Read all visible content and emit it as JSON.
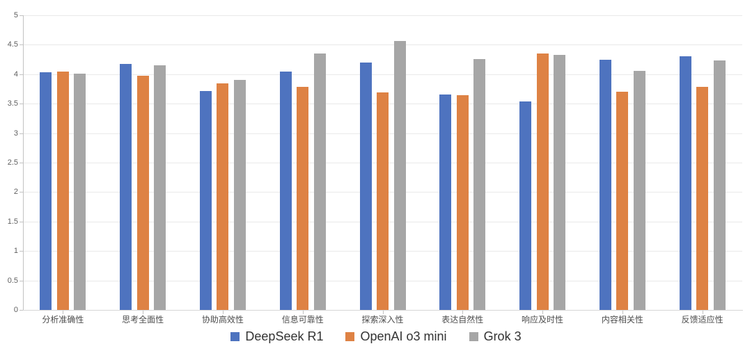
{
  "chart_data": {
    "type": "bar",
    "title": "",
    "categories": [
      "分析准确性",
      "思考全面性",
      "协助高效性",
      "信息可靠性",
      "探索深入性",
      "表达自然性",
      "响应及时性",
      "内容相关性",
      "反馈适应性"
    ],
    "series": [
      {
        "name": "DeepSeek R1",
        "color": "#4e73bf",
        "values": [
          4.03,
          4.17,
          3.72,
          4.05,
          4.2,
          3.66,
          3.54,
          4.25,
          4.31
        ]
      },
      {
        "name": "OpenAI o3 mini",
        "color": "#de8244",
        "values": [
          4.04,
          3.97,
          3.84,
          3.79,
          3.69,
          3.64,
          4.35,
          3.7,
          3.79
        ]
      },
      {
        "name": "Grok 3",
        "color": "#a6a6a6",
        "values": [
          4.01,
          4.15,
          3.9,
          4.35,
          4.56,
          4.26,
          4.33,
          4.06,
          4.23
        ]
      }
    ],
    "xlabel": "",
    "ylabel": "",
    "ylim": [
      0,
      5
    ],
    "ytick_step": 0.5,
    "ytick_labels": [
      "0",
      "0.5",
      "1",
      "1.5",
      "2",
      "2.5",
      "3",
      "3.5",
      "4",
      "4.5",
      "5"
    ],
    "grid": true,
    "legend_position": "bottom"
  },
  "colors": {
    "background": "#ffffff",
    "gridline": "#e9e9e9",
    "axis": "#c2c2c2",
    "y_label_text": "#5f5f5f",
    "x_label_text": "#4d4d4d",
    "legend_text": "#333333"
  }
}
